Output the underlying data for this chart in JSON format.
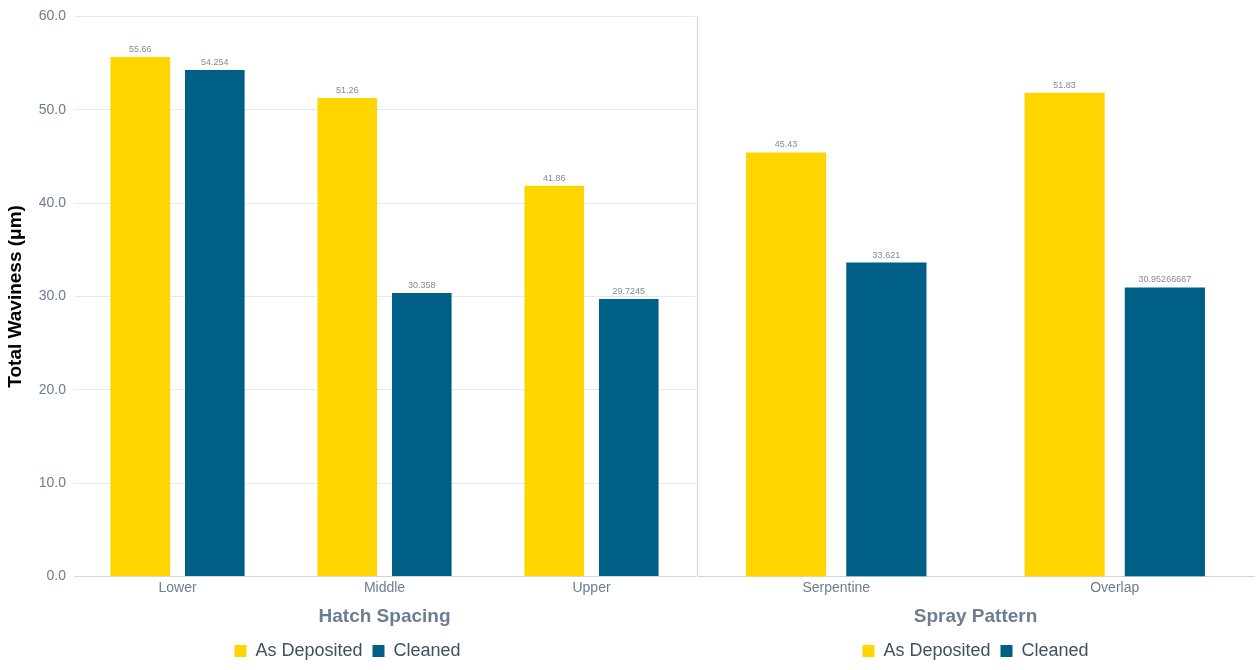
{
  "chart_data": [
    {
      "type": "bar",
      "xlabel": "Hatch Spacing",
      "ylabel": "Total Waviness (μm)",
      "categories": [
        "Lower",
        "Middle",
        "Upper"
      ],
      "series": [
        {
          "name": "As Deposited",
          "color": "#ffd500",
          "values": [
            55.66,
            51.26,
            41.86
          ]
        },
        {
          "name": "Cleaned",
          "color": "#005f87",
          "values": [
            54.254,
            30.358,
            29.7245
          ]
        }
      ],
      "ylim": [
        0,
        60
      ],
      "yticks": [
        {
          "value": 0,
          "label": "0.0"
        },
        {
          "value": 10,
          "label": "10.0"
        },
        {
          "value": 20,
          "label": "20.0"
        },
        {
          "value": 30,
          "label": "30.0"
        },
        {
          "value": 40,
          "label": "40.0"
        },
        {
          "value": 50,
          "label": "50.0"
        },
        {
          "value": 60,
          "label": "60.0"
        }
      ],
      "grid": "y",
      "legend": "bottom",
      "data_labels": true
    },
    {
      "type": "bar",
      "xlabel": "Spray Pattern",
      "categories": [
        "Serpentine",
        "Overlap"
      ],
      "series": [
        {
          "name": "As Deposited",
          "color": "#ffd500",
          "values": [
            45.43,
            51.83
          ]
        },
        {
          "name": "Cleaned",
          "color": "#005f87",
          "values": [
            33.621,
            30.95266667
          ]
        }
      ],
      "ylim": [
        0,
        60
      ],
      "yticks": [
        {
          "value": 0,
          "label": null
        },
        {
          "value": 10,
          "label": null
        },
        {
          "value": 20,
          "label": null
        },
        {
          "value": 30,
          "label": null
        },
        {
          "value": 40,
          "label": null
        },
        {
          "value": 50,
          "label": null
        },
        {
          "value": 60,
          "label": null
        }
      ],
      "grid": "y",
      "legend": "bottom",
      "data_labels": true,
      "tick_labels": "x"
    }
  ]
}
